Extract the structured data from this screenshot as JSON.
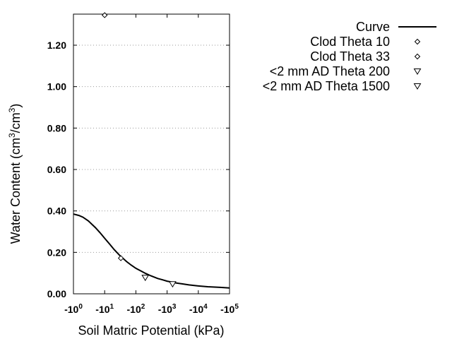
{
  "chart_data": {
    "type": "scatter",
    "xlabel": "Soil Matric Potential (kPa)",
    "ylabel_parts": [
      "Water Content (cm",
      "3",
      "/cm",
      "3",
      ")"
    ],
    "x_scale": "log",
    "xlim": [
      1,
      100000
    ],
    "ylim": [
      0,
      1.35
    ],
    "y_ticks": [
      0.0,
      0.2,
      0.4,
      0.6,
      0.8,
      1.0,
      1.2
    ],
    "y_tick_labels": [
      "0.00",
      "0.20",
      "0.40",
      "0.60",
      "0.80",
      "1.00",
      "1.20"
    ],
    "x_ticks": [
      {
        "value": 1,
        "base": "-10",
        "exp": "0"
      },
      {
        "value": 10,
        "base": "-10",
        "exp": "1"
      },
      {
        "value": 100,
        "base": "-10",
        "exp": "2"
      },
      {
        "value": 1000,
        "base": "-10",
        "exp": "3"
      },
      {
        "value": 10000,
        "base": "-10",
        "exp": "4"
      },
      {
        "value": 100000,
        "base": "-10",
        "exp": "5"
      }
    ],
    "grid": "horizontal-dotted",
    "legend_position": "top-right",
    "series": [
      {
        "name": "Curve",
        "kind": "line",
        "color": "#000000",
        "points": [
          [
            1,
            0.385
          ],
          [
            1.5,
            0.378
          ],
          [
            2,
            0.37
          ],
          [
            3,
            0.352
          ],
          [
            5,
            0.32
          ],
          [
            7,
            0.296
          ],
          [
            10,
            0.268
          ],
          [
            15,
            0.237
          ],
          [
            20,
            0.214
          ],
          [
            30,
            0.186
          ],
          [
            50,
            0.156
          ],
          [
            70,
            0.139
          ],
          [
            100,
            0.123
          ],
          [
            150,
            0.109
          ],
          [
            200,
            0.099
          ],
          [
            300,
            0.087
          ],
          [
            500,
            0.074
          ],
          [
            700,
            0.068
          ],
          [
            1000,
            0.061
          ],
          [
            2000,
            0.052
          ],
          [
            3000,
            0.048
          ],
          [
            5000,
            0.043
          ],
          [
            10000,
            0.038
          ],
          [
            20000,
            0.034
          ],
          [
            50000,
            0.031
          ],
          [
            100000,
            0.028
          ]
        ]
      },
      {
        "name": "Clod Theta 10",
        "kind": "marker",
        "marker": "diamond",
        "points": [
          [
            10,
            1.345
          ]
        ]
      },
      {
        "name": "Clod Theta 33",
        "kind": "marker",
        "marker": "diamond",
        "points": [
          [
            33,
            0.172
          ]
        ]
      },
      {
        "name": "<2 mm AD Theta 200",
        "kind": "marker",
        "marker": "triangle-down",
        "points": [
          [
            200,
            0.078
          ]
        ]
      },
      {
        "name": "<2 mm AD Theta 1500",
        "kind": "marker",
        "marker": "triangle-down",
        "points": [
          [
            1500,
            0.047
          ]
        ]
      }
    ]
  }
}
